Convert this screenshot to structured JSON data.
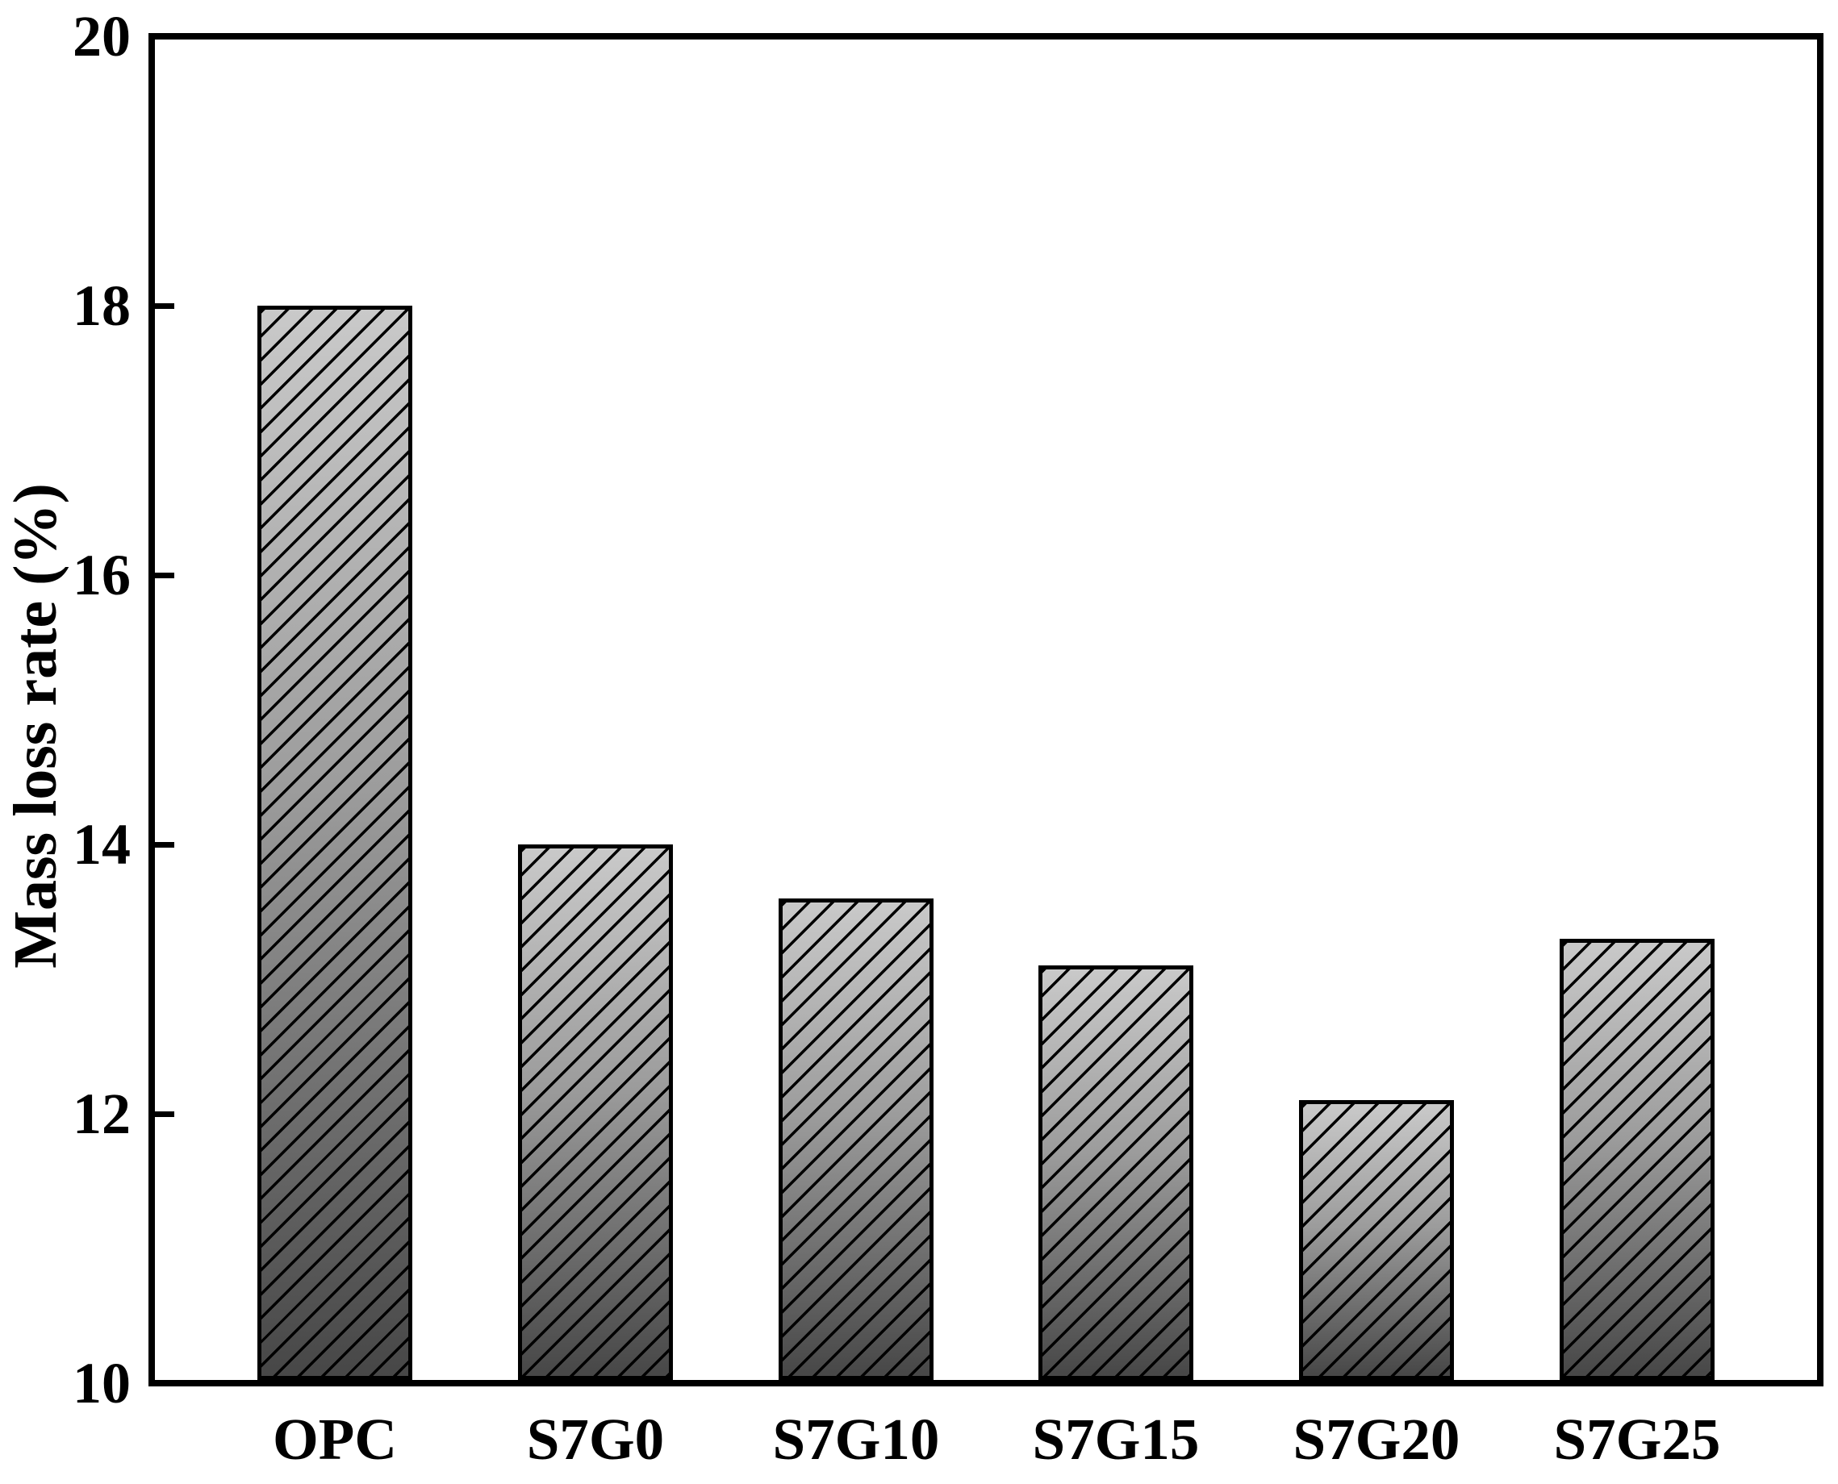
{
  "chart_data": {
    "type": "bar",
    "title": "",
    "xlabel": "",
    "ylabel": "Mass loss rate (%)",
    "categories": [
      "OPC",
      "S7G0",
      "S7G10",
      "S7G15",
      "S7G20",
      "S7G25"
    ],
    "values": [
      18.0,
      14.0,
      13.6,
      13.1,
      12.1,
      13.3
    ],
    "ylim": [
      10,
      20
    ],
    "yticks": [
      {
        "value": 20,
        "label": "20"
      },
      {
        "value": 18,
        "label": "18"
      },
      {
        "value": 16,
        "label": "16"
      },
      {
        "value": 14,
        "label": "14"
      },
      {
        "value": 12,
        "label": "12"
      },
      {
        "value": 10,
        "label": "10"
      }
    ],
    "grid": false,
    "legend": null,
    "background_color": "#ffffff",
    "frame_color": "#000000",
    "bar_style": {
      "hatch": "forward-diagonal",
      "hatch_color": "#000000",
      "border_color": "#000000",
      "gradient_top": "#c9c9c9",
      "gradient_mid": "#9c9c9c",
      "gradient_bottom": "#474747"
    }
  }
}
